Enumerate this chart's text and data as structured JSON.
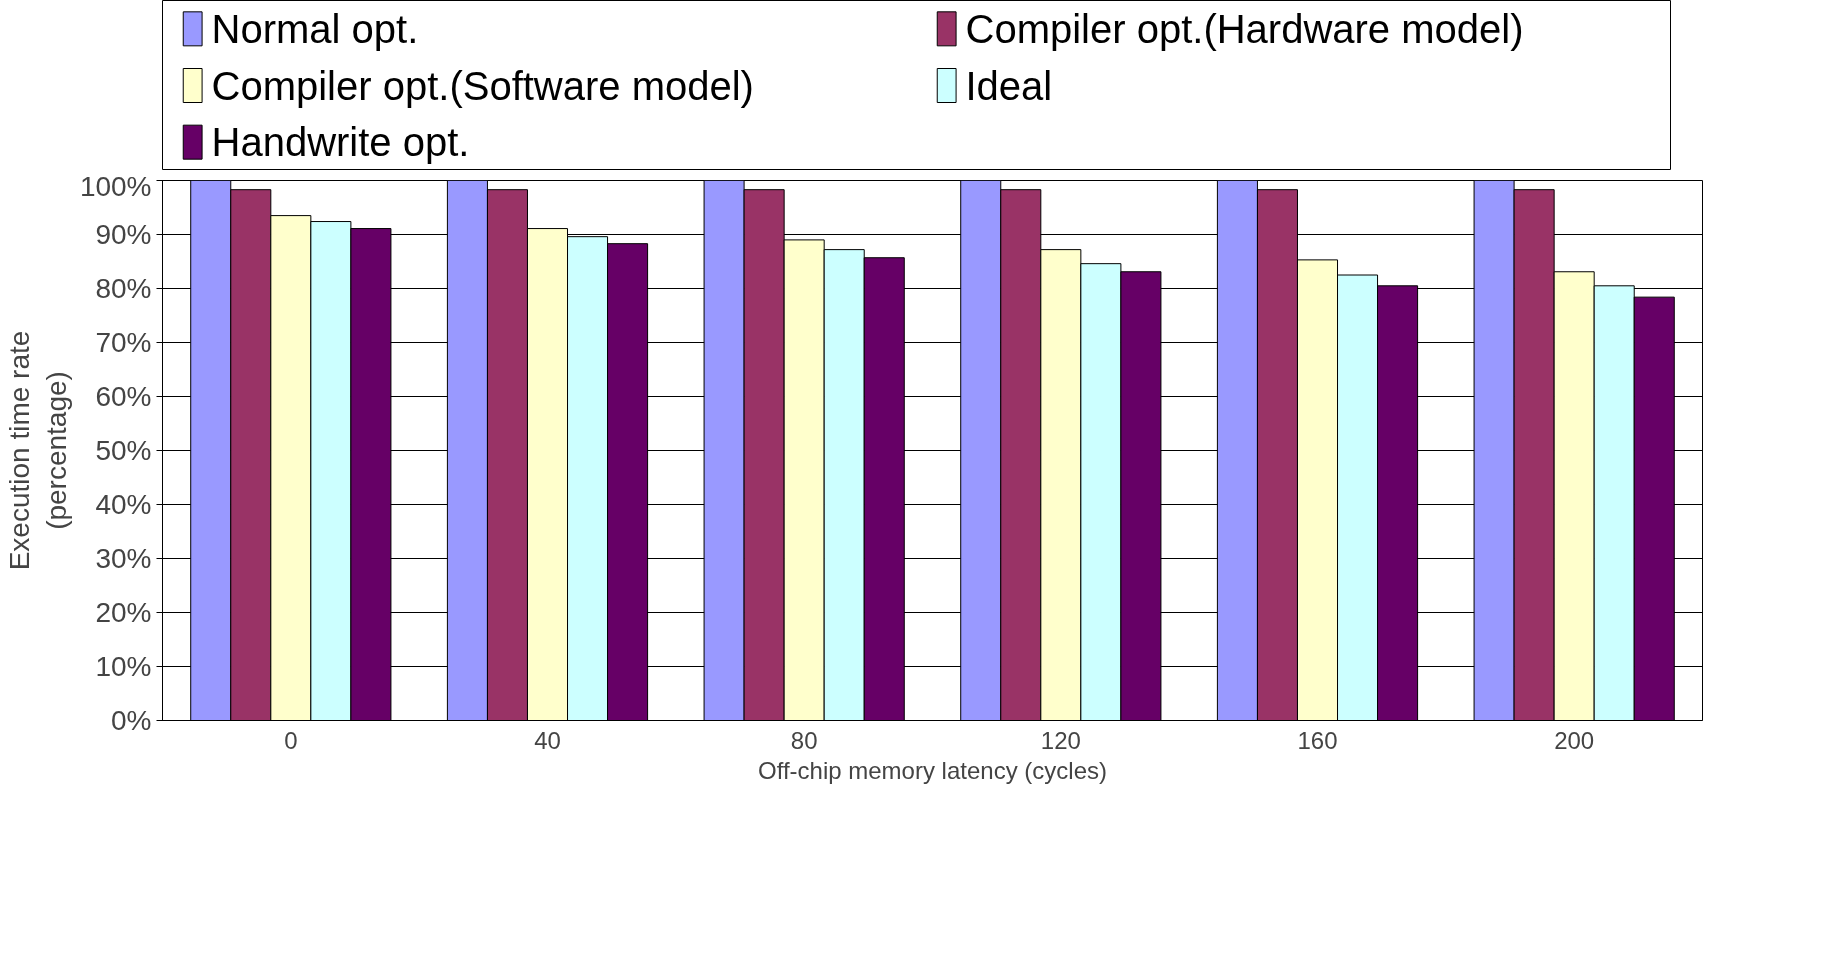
{
  "chart_data": {
    "type": "bar",
    "xlabel": "Off-chip memory latency (cycles)",
    "ylabel": "Execution time rate\n(percentage)",
    "categories": [
      "0",
      "40",
      "80",
      "120",
      "160",
      "200"
    ],
    "series": [
      {
        "name": "Normal opt.",
        "color": "#9999ff",
        "values": [
          100,
          100,
          100,
          100,
          100,
          100
        ]
      },
      {
        "name": "Compiler opt.(Hardware model)",
        "color": "#993366",
        "values": [
          98.3,
          98.3,
          98.3,
          98.3,
          98.3,
          98.3
        ]
      },
      {
        "name": "Compiler opt.(Software model)",
        "color": "#ffffcc",
        "values": [
          93.5,
          91.1,
          89,
          87.2,
          85.3,
          83.1
        ]
      },
      {
        "name": "Ideal",
        "color": "#ccffff",
        "values": [
          92.4,
          89.6,
          87.2,
          84.6,
          82.5,
          80.5
        ]
      },
      {
        "name": "Handwrite opt.",
        "color": "#660066",
        "values": [
          91.1,
          88.3,
          85.7,
          83.1,
          80.5,
          78.4
        ]
      }
    ],
    "ylim": [
      0,
      100
    ],
    "yticks": [
      {
        "value": 0,
        "label": "0%"
      },
      {
        "value": 10,
        "label": "10%"
      },
      {
        "value": 20,
        "label": "20%"
      },
      {
        "value": 30,
        "label": "30%"
      },
      {
        "value": 40,
        "label": "40%"
      },
      {
        "value": 50,
        "label": "50%"
      },
      {
        "value": 60,
        "label": "60%"
      },
      {
        "value": 70,
        "label": "70%"
      },
      {
        "value": 80,
        "label": "80%"
      },
      {
        "value": 90,
        "label": "90%"
      },
      {
        "value": 100,
        "label": "100%"
      }
    ],
    "grid": "y",
    "legend": "top"
  }
}
